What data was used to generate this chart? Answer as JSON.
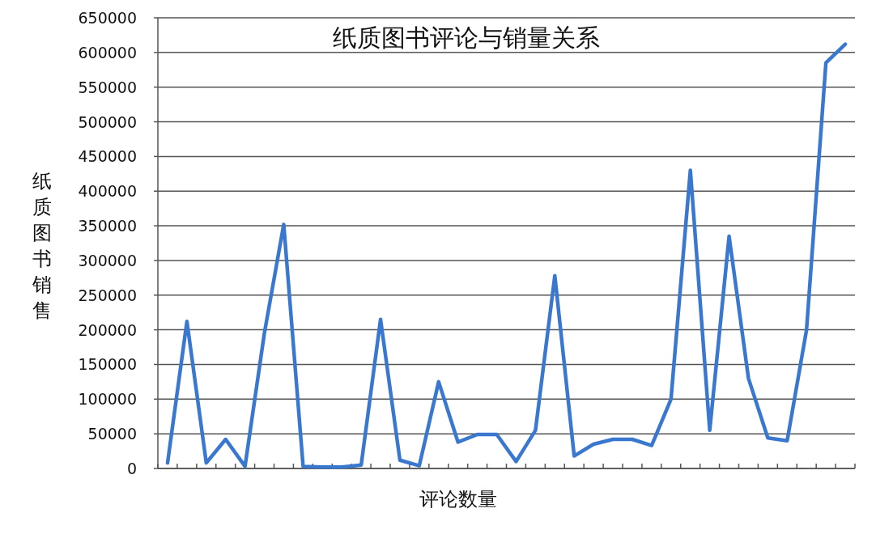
{
  "chart_data": {
    "type": "line",
    "title": "纸质图书评论与销量关系",
    "xlabel": "评论数量",
    "ylabel": "纸质图书销售",
    "categories": [
      null,
      null,
      null,
      null,
      null,
      null,
      null,
      null,
      null,
      null,
      null,
      null,
      null,
      null,
      null,
      null,
      null,
      null,
      null,
      null,
      null,
      null,
      null,
      null,
      null,
      null,
      null,
      null,
      null,
      null,
      null,
      null,
      null,
      null,
      null,
      null
    ],
    "series": [
      {
        "color": "#3a78d0",
        "values": [
          8000,
          212000,
          8000,
          42000,
          3000,
          195000,
          352000,
          3000,
          2000,
          2000,
          5000,
          215000,
          12000,
          4000,
          125000,
          38000,
          49000,
          49000,
          10000,
          55000,
          278000,
          18000,
          35000,
          42000,
          42000,
          33000,
          100000,
          430000,
          55000,
          335000,
          130000,
          44000,
          40000,
          200000,
          585000,
          612000
        ]
      }
    ],
    "ylim": [
      0,
      650000
    ],
    "yticks": [
      0,
      50000,
      100000,
      150000,
      200000,
      250000,
      300000,
      350000,
      400000,
      450000,
      500000,
      550000,
      600000,
      650000
    ],
    "grid": "y",
    "tick_labels": "y",
    "marker": "none",
    "line_style": "solid"
  }
}
